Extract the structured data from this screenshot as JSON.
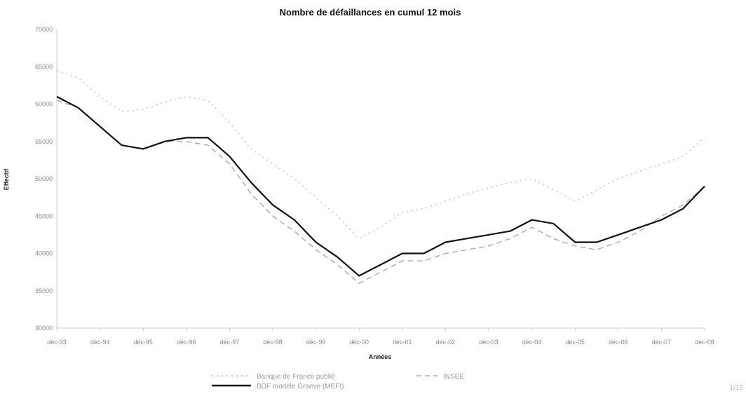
{
  "page_number": "1/16",
  "chart_data": {
    "type": "line",
    "title": "Nombre de défaillances en cumul 12 mois",
    "xlabel": "Années",
    "ylabel": "Effectif",
    "ylim": [
      30000,
      70000
    ],
    "y_ticks": [
      "30000",
      "35000",
      "40000",
      "45000",
      "50000",
      "55000",
      "60000",
      "65000",
      "70000"
    ],
    "categories": [
      "déc-93",
      "déc-94",
      "déc-95",
      "déc-96",
      "déc-97",
      "déc-98",
      "déc-99",
      "déc-00",
      "déc-01",
      "déc-02",
      "déc-03",
      "déc-04",
      "déc-05",
      "déc-06",
      "déc-07",
      "déc-08"
    ],
    "grid": false,
    "legend_position": "bottom",
    "series": [
      {
        "name": "Banque de France publié",
        "style": "dotted",
        "color": "#c8c8c8",
        "x": [
          0,
          0.5,
          1,
          1.5,
          2,
          2.5,
          3,
          3.5,
          4,
          4.5,
          5,
          5.5,
          6,
          6.5,
          7,
          7.5,
          8,
          8.5,
          9,
          9.5,
          10,
          10.5,
          11,
          11.5,
          12,
          12.5,
          13,
          13.5,
          14,
          14.5,
          15
        ],
        "values": [
          64500,
          63500,
          61000,
          59000,
          59300,
          60300,
          61000,
          60500,
          57500,
          54000,
          52000,
          50000,
          47500,
          45000,
          42000,
          43500,
          45500,
          46000,
          47000,
          48000,
          48800,
          49500,
          50000,
          48500,
          47000,
          48500,
          50000,
          51000,
          52000,
          53000,
          55500
        ]
      },
      {
        "name": "INSEE",
        "style": "dashed",
        "color": "#aaaaaa",
        "x": [
          0,
          0.5,
          1,
          1.5,
          2,
          2.5,
          3,
          3.5,
          4,
          4.5,
          5,
          5.5,
          6,
          6.5,
          7,
          7.5,
          8,
          8.5,
          9,
          9.5,
          10,
          10.5,
          11,
          11.5,
          12,
          12.5,
          13,
          13.5,
          14,
          14.5,
          15
        ],
        "values": [
          60500,
          59500,
          57000,
          54500,
          54000,
          55000,
          55000,
          54500,
          52000,
          48000,
          45000,
          43000,
          40500,
          38500,
          36000,
          37500,
          39000,
          39000,
          40000,
          40500,
          41000,
          42000,
          43500,
          42000,
          41000,
          40500,
          41500,
          43000,
          45000,
          46500,
          49000
        ]
      },
      {
        "name": "BDF modèle Graeve (MEFI)",
        "style": "solid",
        "color": "#111111",
        "x": [
          0,
          0.5,
          1,
          1.5,
          2,
          2.5,
          3,
          3.5,
          4,
          4.5,
          5,
          5.5,
          6,
          6.5,
          7,
          7.5,
          8,
          8.5,
          9,
          9.5,
          10,
          10.5,
          11,
          11.5,
          12,
          12.5,
          13,
          13.5,
          14,
          14.5,
          15
        ],
        "values": [
          61000,
          59500,
          57000,
          54500,
          54000,
          55000,
          55500,
          55500,
          53000,
          49500,
          46500,
          44500,
          41500,
          39500,
          37000,
          38500,
          40000,
          40000,
          41500,
          42000,
          42500,
          43000,
          44500,
          44000,
          41500,
          41500,
          42500,
          43500,
          44500,
          46000,
          49000
        ]
      }
    ]
  }
}
